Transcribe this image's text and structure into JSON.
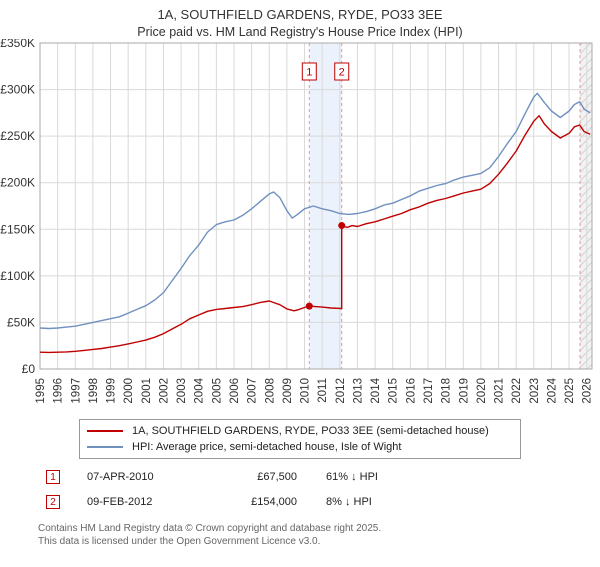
{
  "chart_data": {
    "type": "line",
    "title": "1A, SOUTHFIELD GARDENS, RYDE, PO33 3EE",
    "subtitle": "Price paid vs. HM Land Registry's House Price Index (HPI)",
    "x_range": [
      1995,
      2026.3
    ],
    "y_range": [
      0,
      350
    ],
    "y_unit": "GBP thousands",
    "x_ticks": [
      1995,
      1996,
      1997,
      1998,
      1999,
      2000,
      2001,
      2002,
      2003,
      2004,
      2005,
      2006,
      2007,
      2008,
      2009,
      2010,
      2011,
      2012,
      2013,
      2014,
      2015,
      2016,
      2017,
      2018,
      2019,
      2020,
      2021,
      2022,
      2023,
      2024,
      2025,
      2026
    ],
    "y_ticks": [
      {
        "value": 0,
        "label": "£0"
      },
      {
        "value": 50,
        "label": "£50K"
      },
      {
        "value": 100,
        "label": "£100K"
      },
      {
        "value": 150,
        "label": "£150K"
      },
      {
        "value": 200,
        "label": "£200K"
      },
      {
        "value": 250,
        "label": "£250K"
      },
      {
        "value": 300,
        "label": "£300K"
      },
      {
        "value": 350,
        "label": "£350K"
      }
    ],
    "series": [
      {
        "name": "1A, SOUTHFIELD GARDENS, RYDE, PO33 3EE (semi-detached house)",
        "color": "#c00000",
        "points": [
          [
            1995,
            18
          ],
          [
            1995.5,
            17.8
          ],
          [
            1996,
            18
          ],
          [
            1996.5,
            18.4
          ],
          [
            1997,
            19
          ],
          [
            1997.5,
            20
          ],
          [
            1998,
            21
          ],
          [
            1998.5,
            22
          ],
          [
            1999,
            23.5
          ],
          [
            1999.5,
            25
          ],
          [
            2000,
            27
          ],
          [
            2000.5,
            29
          ],
          [
            2001,
            31
          ],
          [
            2001.5,
            34
          ],
          [
            2002,
            38
          ],
          [
            2002.5,
            43
          ],
          [
            2003,
            48
          ],
          [
            2003.5,
            54
          ],
          [
            2004,
            58
          ],
          [
            2004.5,
            62
          ],
          [
            2005,
            64
          ],
          [
            2005.5,
            65
          ],
          [
            2006,
            66
          ],
          [
            2006.5,
            67
          ],
          [
            2007,
            69
          ],
          [
            2007.5,
            71.5
          ],
          [
            2008,
            73
          ],
          [
            2008.3,
            71
          ],
          [
            2008.6,
            69
          ],
          [
            2009,
            64.5
          ],
          [
            2009.4,
            62.5
          ],
          [
            2009.7,
            64
          ],
          [
            2010,
            66
          ],
          [
            2010.27,
            67.5
          ],
          [
            2010.6,
            67
          ],
          [
            2011,
            66.5
          ],
          [
            2011.5,
            65.5
          ],
          [
            2012.11,
            65
          ],
          [
            2012.11,
            154
          ],
          [
            2012.4,
            152
          ],
          [
            2012.7,
            154
          ],
          [
            2013,
            153
          ],
          [
            2013.5,
            156
          ],
          [
            2014,
            158
          ],
          [
            2014.5,
            161
          ],
          [
            2015,
            164
          ],
          [
            2015.5,
            167
          ],
          [
            2016,
            171
          ],
          [
            2016.5,
            174
          ],
          [
            2017,
            178
          ],
          [
            2017.5,
            181
          ],
          [
            2018,
            183
          ],
          [
            2018.5,
            186
          ],
          [
            2019,
            189
          ],
          [
            2019.5,
            191
          ],
          [
            2020,
            193
          ],
          [
            2020.5,
            199
          ],
          [
            2021,
            209
          ],
          [
            2021.5,
            221
          ],
          [
            2022,
            234
          ],
          [
            2022.5,
            251
          ],
          [
            2023,
            266
          ],
          [
            2023.3,
            272
          ],
          [
            2023.6,
            263
          ],
          [
            2024,
            255
          ],
          [
            2024.5,
            248
          ],
          [
            2025,
            253
          ],
          [
            2025.3,
            260
          ],
          [
            2025.6,
            262
          ],
          [
            2025.85,
            255
          ],
          [
            2026.2,
            252
          ]
        ]
      },
      {
        "name": "HPI: Average price, semi-detached house, Isle of Wight",
        "color": "#7090c0",
        "points": [
          [
            1995,
            44
          ],
          [
            1995.5,
            43.5
          ],
          [
            1996,
            44
          ],
          [
            1996.5,
            45
          ],
          [
            1997,
            46
          ],
          [
            1997.5,
            48
          ],
          [
            1998,
            50
          ],
          [
            1998.5,
            52
          ],
          [
            1999,
            54
          ],
          [
            1999.5,
            56
          ],
          [
            2000,
            60
          ],
          [
            2000.5,
            64
          ],
          [
            2001,
            68
          ],
          [
            2001.5,
            74
          ],
          [
            2002,
            82
          ],
          [
            2002.5,
            95
          ],
          [
            2003,
            108
          ],
          [
            2003.5,
            122
          ],
          [
            2004,
            133
          ],
          [
            2004.5,
            147
          ],
          [
            2005,
            155
          ],
          [
            2005.5,
            158
          ],
          [
            2006,
            160
          ],
          [
            2006.5,
            165
          ],
          [
            2007,
            172
          ],
          [
            2007.5,
            180
          ],
          [
            2008,
            188
          ],
          [
            2008.25,
            190
          ],
          [
            2008.6,
            184
          ],
          [
            2009,
            170
          ],
          [
            2009.3,
            162
          ],
          [
            2009.6,
            166
          ],
          [
            2010,
            172
          ],
          [
            2010.5,
            175
          ],
          [
            2011,
            172
          ],
          [
            2011.5,
            170
          ],
          [
            2012,
            167
          ],
          [
            2012.5,
            166
          ],
          [
            2013,
            167
          ],
          [
            2013.5,
            169
          ],
          [
            2014,
            172
          ],
          [
            2014.5,
            176
          ],
          [
            2015,
            178
          ],
          [
            2015.5,
            182
          ],
          [
            2016,
            186
          ],
          [
            2016.5,
            191
          ],
          [
            2017,
            194
          ],
          [
            2017.5,
            197
          ],
          [
            2018,
            199
          ],
          [
            2018.5,
            203
          ],
          [
            2019,
            206
          ],
          [
            2019.5,
            208
          ],
          [
            2020,
            210
          ],
          [
            2020.5,
            216
          ],
          [
            2021,
            228
          ],
          [
            2021.5,
            242
          ],
          [
            2022,
            255
          ],
          [
            2022.5,
            274
          ],
          [
            2023,
            292
          ],
          [
            2023.2,
            296
          ],
          [
            2023.6,
            286
          ],
          [
            2024,
            277
          ],
          [
            2024.5,
            270
          ],
          [
            2025,
            277
          ],
          [
            2025.3,
            284
          ],
          [
            2025.6,
            287
          ],
          [
            2025.85,
            279
          ],
          [
            2026.2,
            275
          ]
        ]
      }
    ],
    "sales_band": {
      "x1": 2010.27,
      "x2": 2012.11
    },
    "future_band": {
      "x1": 2025.62,
      "x2": 2026.3
    },
    "sales": [
      {
        "label": "1",
        "x": 2010.27,
        "y": 67.5
      },
      {
        "label": "2",
        "x": 2012.11,
        "y": 154
      }
    ],
    "grid": true,
    "legend_position": "below"
  },
  "transactions": [
    {
      "num": "1",
      "date": "07-APR-2010",
      "price": "£67,500",
      "hpi_diff": "61% ↓ HPI"
    },
    {
      "num": "2",
      "date": "09-FEB-2012",
      "price": "£154,000",
      "hpi_diff": "8% ↓ HPI"
    }
  ],
  "footer": {
    "line1": "Contains HM Land Registry data © Crown copyright and database right 2025.",
    "line2": "This data is licensed under the Open Government Licence v3.0."
  }
}
